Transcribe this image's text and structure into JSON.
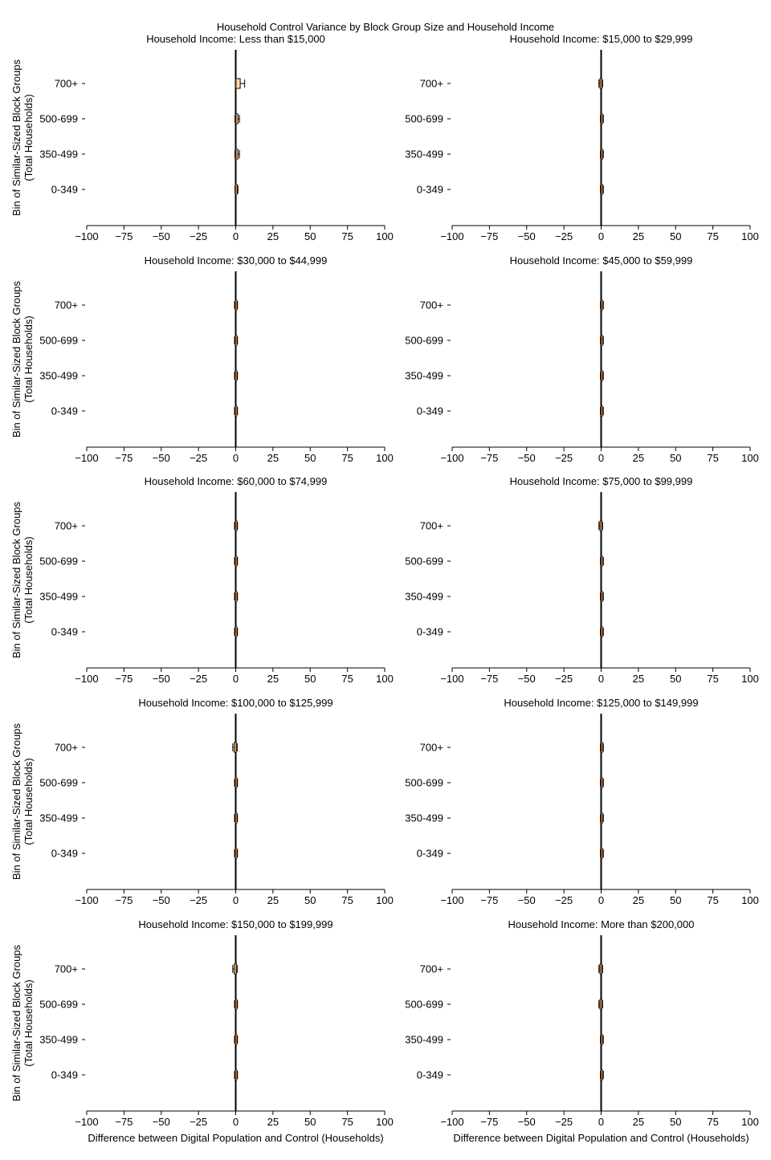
{
  "chart_data": {
    "type": "box",
    "title": "Household Control Variance by Block Group Size and Household Income",
    "xlabel": "Difference between Digital Population and Control (Households)",
    "ylabel_lines": [
      "Bin of Similar-Sized Block Groups",
      "(Total Households)"
    ],
    "xlim": [
      -100,
      100
    ],
    "xticks": [
      -100,
      -75,
      -50,
      -25,
      0,
      25,
      50,
      75,
      100
    ],
    "xtick_labels": [
      "−100",
      "−75",
      "−50",
      "−25",
      "0",
      "25",
      "50",
      "75",
      "100"
    ],
    "categories": [
      "700+",
      "500-699",
      "350-499",
      "0-349"
    ],
    "colors": {
      "box_fill": "#fce3c4",
      "box_edge": "#000000",
      "median": "#e07b2a",
      "zero_line": "#000000"
    },
    "panels": [
      {
        "title": "Household Income: Less than $15,000",
        "boxes": [
          {
            "category": "700+",
            "whisker_low": 0,
            "q1": 0,
            "median": 0.5,
            "q3": 3,
            "whisker_high": 6
          },
          {
            "category": "500-699",
            "whisker_low": -0.5,
            "q1": 0,
            "median": 0.5,
            "q3": 1.5,
            "whisker_high": 2.5
          },
          {
            "category": "350-499",
            "whisker_low": -0.5,
            "q1": 0,
            "median": 0.5,
            "q3": 1.5,
            "whisker_high": 2.5
          },
          {
            "category": "0-349",
            "whisker_low": -0.5,
            "q1": 0,
            "median": 0.3,
            "q3": 1,
            "whisker_high": 1.5
          }
        ]
      },
      {
        "title": "Household Income: $15,000 to $29,999",
        "boxes": [
          {
            "category": "700+",
            "whisker_low": -1.5,
            "q1": -0.8,
            "median": 0,
            "q3": 0.5,
            "whisker_high": 1
          },
          {
            "category": "500-699",
            "whisker_low": -0.5,
            "q1": 0,
            "median": 0.5,
            "q3": 1,
            "whisker_high": 1.5
          },
          {
            "category": "350-499",
            "whisker_low": -0.5,
            "q1": 0,
            "median": 0.5,
            "q3": 1,
            "whisker_high": 1.5
          },
          {
            "category": "0-349",
            "whisker_low": -0.5,
            "q1": 0,
            "median": 0.5,
            "q3": 1,
            "whisker_high": 1.5
          }
        ]
      },
      {
        "title": "Household Income: $30,000 to $44,999",
        "boxes": [
          {
            "category": "700+",
            "whisker_low": -0.8,
            "q1": -0.3,
            "median": 0.3,
            "q3": 0.8,
            "whisker_high": 1.2
          },
          {
            "category": "500-699",
            "whisker_low": -0.8,
            "q1": -0.3,
            "median": 0.3,
            "q3": 0.8,
            "whisker_high": 1.2
          },
          {
            "category": "350-499",
            "whisker_low": -0.8,
            "q1": -0.3,
            "median": 0.3,
            "q3": 0.8,
            "whisker_high": 1.2
          },
          {
            "category": "0-349",
            "whisker_low": -0.8,
            "q1": -0.3,
            "median": 0.3,
            "q3": 0.8,
            "whisker_high": 1.2
          }
        ]
      },
      {
        "title": "Household Income: $45,000 to $59,999",
        "boxes": [
          {
            "category": "700+",
            "whisker_low": -0.5,
            "q1": 0,
            "median": 0.5,
            "q3": 1,
            "whisker_high": 1.5
          },
          {
            "category": "500-699",
            "whisker_low": -0.5,
            "q1": 0,
            "median": 0.5,
            "q3": 1,
            "whisker_high": 1.5
          },
          {
            "category": "350-499",
            "whisker_low": -0.5,
            "q1": 0,
            "median": 0.5,
            "q3": 1,
            "whisker_high": 1.5
          },
          {
            "category": "0-349",
            "whisker_low": -0.5,
            "q1": 0,
            "median": 0.5,
            "q3": 1,
            "whisker_high": 1.5
          }
        ]
      },
      {
        "title": "Household Income: $60,000 to $74,999",
        "boxes": [
          {
            "category": "700+",
            "whisker_low": -0.8,
            "q1": -0.3,
            "median": 0.3,
            "q3": 0.8,
            "whisker_high": 1.2
          },
          {
            "category": "500-699",
            "whisker_low": -0.8,
            "q1": -0.3,
            "median": 0.3,
            "q3": 0.8,
            "whisker_high": 1.2
          },
          {
            "category": "350-499",
            "whisker_low": -0.8,
            "q1": -0.3,
            "median": 0.3,
            "q3": 0.8,
            "whisker_high": 1.2
          },
          {
            "category": "0-349",
            "whisker_low": -0.8,
            "q1": -0.3,
            "median": 0.3,
            "q3": 0.8,
            "whisker_high": 1.2
          }
        ]
      },
      {
        "title": "Household Income: $75,000 to $99,999",
        "boxes": [
          {
            "category": "700+",
            "whisker_low": -1.5,
            "q1": -0.8,
            "median": 0,
            "q3": 0.5,
            "whisker_high": 1
          },
          {
            "category": "500-699",
            "whisker_low": -0.5,
            "q1": 0,
            "median": 0.5,
            "q3": 1,
            "whisker_high": 1.5
          },
          {
            "category": "350-499",
            "whisker_low": -0.5,
            "q1": 0,
            "median": 0.5,
            "q3": 1,
            "whisker_high": 1.5
          },
          {
            "category": "0-349",
            "whisker_low": -0.5,
            "q1": 0,
            "median": 0.5,
            "q3": 1,
            "whisker_high": 1.5
          }
        ]
      },
      {
        "title": "Household Income: $100,000 to $125,999",
        "boxes": [
          {
            "category": "700+",
            "whisker_low": -2,
            "q1": -1,
            "median": 0,
            "q3": 0.5,
            "whisker_high": 1
          },
          {
            "category": "500-699",
            "whisker_low": -0.8,
            "q1": -0.3,
            "median": 0.3,
            "q3": 0.8,
            "whisker_high": 1.2
          },
          {
            "category": "350-499",
            "whisker_low": -0.8,
            "q1": -0.3,
            "median": 0.3,
            "q3": 0.8,
            "whisker_high": 1.2
          },
          {
            "category": "0-349",
            "whisker_low": -0.8,
            "q1": -0.3,
            "median": 0.3,
            "q3": 0.8,
            "whisker_high": 1.2
          }
        ]
      },
      {
        "title": "Household Income: $125,000 to $149,999",
        "boxes": [
          {
            "category": "700+",
            "whisker_low": -0.5,
            "q1": 0,
            "median": 0.5,
            "q3": 1,
            "whisker_high": 1.5
          },
          {
            "category": "500-699",
            "whisker_low": -0.5,
            "q1": 0,
            "median": 0.5,
            "q3": 1,
            "whisker_high": 1.5
          },
          {
            "category": "350-499",
            "whisker_low": -0.5,
            "q1": 0,
            "median": 0.5,
            "q3": 1,
            "whisker_high": 1.5
          },
          {
            "category": "0-349",
            "whisker_low": -0.5,
            "q1": 0,
            "median": 0.5,
            "q3": 1,
            "whisker_high": 1.5
          }
        ]
      },
      {
        "title": "Household Income: $150,000 to $199,999",
        "boxes": [
          {
            "category": "700+",
            "whisker_low": -2,
            "q1": -1,
            "median": 0,
            "q3": 0.5,
            "whisker_high": 1
          },
          {
            "category": "500-699",
            "whisker_low": -0.8,
            "q1": -0.3,
            "median": 0.3,
            "q3": 0.8,
            "whisker_high": 1.2
          },
          {
            "category": "350-499",
            "whisker_low": -0.8,
            "q1": -0.3,
            "median": 0.3,
            "q3": 0.8,
            "whisker_high": 1.2
          },
          {
            "category": "0-349",
            "whisker_low": -0.8,
            "q1": -0.3,
            "median": 0.3,
            "q3": 0.8,
            "whisker_high": 1.2
          }
        ]
      },
      {
        "title": "Household Income: More than $200,000",
        "boxes": [
          {
            "category": "700+",
            "whisker_low": -1.5,
            "q1": -0.8,
            "median": 0,
            "q3": 0.5,
            "whisker_high": 1
          },
          {
            "category": "500-699",
            "whisker_low": -1.5,
            "q1": -0.8,
            "median": 0,
            "q3": 0.5,
            "whisker_high": 1
          },
          {
            "category": "350-499",
            "whisker_low": -0.5,
            "q1": 0,
            "median": 0.5,
            "q3": 1,
            "whisker_high": 1.5
          },
          {
            "category": "0-349",
            "whisker_low": -0.5,
            "q1": 0,
            "median": 0.5,
            "q3": 1,
            "whisker_high": 1.5
          }
        ]
      }
    ]
  }
}
